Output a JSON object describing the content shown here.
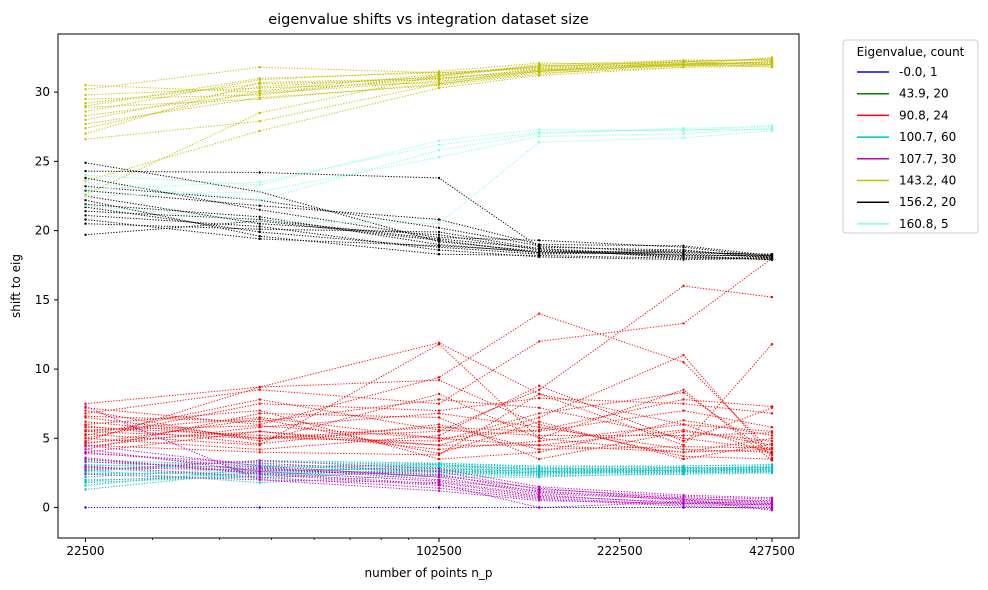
{
  "chart_data": {
    "type": "line",
    "title": "eigenvalue shifts vs integration dataset size",
    "xlabel": "number of points n_p",
    "ylabel": "shift to eig",
    "xscale": "log",
    "xlim": [
      20000,
      480000
    ],
    "ylim": [
      -2.2,
      34.2
    ],
    "x_ticks": [
      22500,
      102500,
      222500,
      427500
    ],
    "y_ticks": [
      0,
      5,
      10,
      15,
      20,
      25,
      30
    ],
    "x": [
      22500,
      47500,
      102500,
      157500,
      292500,
      427500
    ],
    "grid": false,
    "line_style": "dotted with small point markers",
    "legend": {
      "title": "Eigenvalue, count",
      "placement": "outside-right"
    },
    "groups": [
      {
        "label": "-0.0, 1",
        "color": "#0000ff",
        "count": 1,
        "curves": [
          [
            0.0,
            0.0,
            0.0,
            0.0,
            0.0,
            0.0
          ]
        ]
      },
      {
        "label": "43.9, 20",
        "color": "#008000",
        "count": 20,
        "curves": []
      },
      {
        "label": "90.8, 24",
        "color": "#ff0000",
        "count": 24,
        "curves": [
          [
            7.5,
            8.7,
            11.9,
            8.2,
            6.0,
            5.5
          ],
          [
            7.2,
            6.0,
            9.4,
            14.0,
            10.5,
            4.0
          ],
          [
            6.8,
            8.5,
            7.5,
            12.0,
            13.3,
            18.0
          ],
          [
            6.5,
            5.0,
            5.5,
            8.5,
            16.0,
            15.2
          ],
          [
            5.3,
            4.5,
            11.8,
            5.0,
            8.5,
            3.4
          ],
          [
            4.0,
            5.5,
            4.5,
            6.5,
            11.0,
            3.6
          ],
          [
            5.0,
            7.5,
            7.0,
            7.9,
            7.5,
            6.8
          ],
          [
            4.5,
            4.0,
            3.8,
            8.2,
            4.5,
            11.8
          ],
          [
            5.5,
            6.5,
            5.0,
            4.5,
            4.0,
            4.2
          ],
          [
            5.8,
            5.2,
            4.5,
            4.5,
            5.6,
            4.5
          ],
          [
            7.0,
            4.8,
            8.2,
            5.0,
            4.0,
            5.0
          ],
          [
            4.2,
            6.8,
            6.5,
            3.5,
            5.5,
            4.8
          ],
          [
            6.2,
            5.0,
            5.8,
            5.5,
            7.0,
            5.8
          ],
          [
            4.8,
            8.7,
            9.2,
            6.0,
            3.7,
            3.5
          ],
          [
            5.0,
            4.2,
            5.2,
            8.8,
            4.8,
            7.2
          ],
          [
            6.0,
            7.0,
            3.5,
            4.0,
            6.3,
            5.2
          ],
          [
            4.4,
            5.8,
            6.8,
            5.8,
            4.2,
            4.0
          ],
          [
            5.5,
            5.0,
            4.8,
            6.8,
            8.3,
            3.8
          ],
          [
            6.6,
            6.2,
            7.8,
            7.2,
            5.0,
            4.2
          ],
          [
            4.7,
            5.5,
            4.2,
            4.8,
            6.0,
            3.9
          ],
          [
            5.2,
            7.8,
            5.6,
            5.2,
            5.2,
            5.4
          ],
          [
            5.9,
            4.6,
            6.0,
            4.2,
            4.4,
            4.3
          ],
          [
            4.6,
            6.4,
            3.9,
            6.2,
            3.5,
            4.6
          ],
          [
            5.6,
            5.9,
            5.0,
            5.6,
            7.8,
            7.3
          ]
        ]
      },
      {
        "label": "100.7, 60",
        "color": "#00bfbf",
        "count": 60,
        "curves": [
          [
            1.3,
            2.6,
            2.9,
            2.6,
            2.7,
            2.8
          ],
          [
            1.6,
            2.8,
            3.1,
            2.8,
            2.9,
            2.9
          ],
          [
            1.9,
            2.5,
            2.6,
            2.4,
            2.6,
            2.7
          ],
          [
            2.2,
            2.9,
            3.2,
            2.9,
            3.0,
            3.1
          ],
          [
            2.5,
            2.4,
            2.7,
            2.5,
            2.5,
            2.6
          ],
          [
            2.8,
            3.0,
            3.0,
            2.7,
            2.8,
            2.9
          ],
          [
            3.1,
            2.7,
            2.8,
            2.6,
            2.7,
            2.6
          ],
          [
            3.4,
            3.1,
            2.5,
            2.4,
            2.6,
            2.5
          ],
          [
            2.0,
            2.2,
            2.6,
            2.5,
            2.7,
            2.8
          ],
          [
            2.4,
            2.6,
            3.0,
            2.8,
            2.8,
            3.0
          ],
          [
            2.7,
            1.8,
            2.4,
            2.3,
            2.4,
            2.5
          ],
          [
            3.0,
            3.3,
            3.1,
            2.7,
            2.9,
            2.7
          ],
          [
            1.8,
            2.3,
            2.8,
            2.6,
            2.8,
            2.9
          ],
          [
            3.3,
            2.8,
            2.2,
            2.2,
            2.5,
            2.6
          ],
          [
            2.6,
            3.4,
            3.2,
            3.0,
            3.0,
            3.1
          ],
          [
            2.9,
            2.1,
            2.7,
            2.5,
            2.6,
            2.7
          ]
        ]
      },
      {
        "label": "107.7, 30",
        "color": "#bf00bf",
        "count": 30,
        "curves": [
          [
            7.3,
            2.0,
            1.8,
            0.8,
            0.4,
            0.3
          ],
          [
            4.5,
            3.0,
            2.2,
            1.0,
            0.6,
            0.5
          ],
          [
            4.2,
            2.6,
            1.9,
            0.9,
            0.3,
            0.2
          ],
          [
            3.9,
            3.2,
            2.6,
            1.3,
            0.8,
            0.6
          ],
          [
            3.6,
            2.4,
            1.6,
            0.7,
            0.2,
            0.1
          ],
          [
            3.3,
            2.8,
            2.4,
            1.1,
            0.7,
            0.4
          ],
          [
            3.0,
            2.2,
            1.4,
            0.6,
            0.1,
            -0.1
          ],
          [
            2.7,
            3.4,
            2.8,
            1.5,
            0.9,
            0.7
          ],
          [
            2.4,
            2.0,
            1.2,
            0.5,
            0.3,
            0.2
          ],
          [
            4.0,
            2.9,
            2.0,
            1.2,
            0.5,
            0.4
          ],
          [
            3.5,
            2.5,
            1.7,
            0.0,
            0.4,
            0.3
          ],
          [
            2.9,
            2.7,
            2.3,
            1.4,
            0.6,
            -0.2
          ]
        ]
      },
      {
        "label": "143.2, 40",
        "color": "#bfbf00",
        "count": 40,
        "curves": [
          [
            30.5,
            30.0,
            31.0,
            31.5,
            32.0,
            32.2
          ],
          [
            30.2,
            31.8,
            31.4,
            31.8,
            32.2,
            32.4
          ],
          [
            29.8,
            30.3,
            30.7,
            31.6,
            31.9,
            32.0
          ],
          [
            29.5,
            29.8,
            31.2,
            32.0,
            32.3,
            32.3
          ],
          [
            29.2,
            30.6,
            30.9,
            31.7,
            32.1,
            32.1
          ],
          [
            28.9,
            29.5,
            30.6,
            31.4,
            31.8,
            31.9
          ],
          [
            28.6,
            30.9,
            31.5,
            32.1,
            32.0,
            32.5
          ],
          [
            28.3,
            29.9,
            30.8,
            31.5,
            32.2,
            32.0
          ],
          [
            28.0,
            30.4,
            31.1,
            31.9,
            31.9,
            32.2
          ],
          [
            27.7,
            29.6,
            30.5,
            31.3,
            32.1,
            31.8
          ],
          [
            27.4,
            30.1,
            31.3,
            31.8,
            32.3,
            32.3
          ],
          [
            27.0,
            30.7,
            31.0,
            31.6,
            32.0,
            32.1
          ],
          [
            26.6,
            27.9,
            30.6,
            31.5,
            31.9,
            32.0
          ],
          [
            23.6,
            27.2,
            30.3,
            31.2,
            31.8,
            31.9
          ],
          [
            22.6,
            28.5,
            31.2,
            31.9,
            32.2,
            32.4
          ],
          [
            29.0,
            31.0,
            31.4,
            31.7,
            32.0,
            32.2
          ]
        ]
      },
      {
        "label": "156.2, 20",
        "color": "#000000",
        "count": 20,
        "curves": [
          [
            24.9,
            22.8,
            19.2,
            18.5,
            18.2,
            18.2
          ],
          [
            24.3,
            24.2,
            23.8,
            18.8,
            18.6,
            18.0
          ],
          [
            23.8,
            21.5,
            19.5,
            19.3,
            18.8,
            18.1
          ],
          [
            23.2,
            22.2,
            20.2,
            18.9,
            18.4,
            18.3
          ],
          [
            22.9,
            21.8,
            20.8,
            19.0,
            18.9,
            18.2
          ],
          [
            22.5,
            20.5,
            19.7,
            18.6,
            18.1,
            17.9
          ],
          [
            22.2,
            19.6,
            18.3,
            18.2,
            18.0,
            18.0
          ],
          [
            21.9,
            21.0,
            19.0,
            18.4,
            18.3,
            18.1
          ],
          [
            21.7,
            19.9,
            18.8,
            18.3,
            18.5,
            18.2
          ],
          [
            21.4,
            20.8,
            19.4,
            18.7,
            18.2,
            17.9
          ],
          [
            21.1,
            20.3,
            18.6,
            18.1,
            17.9,
            18.0
          ],
          [
            20.8,
            19.4,
            18.9,
            18.5,
            18.4,
            18.3
          ],
          [
            20.5,
            20.1,
            19.9,
            18.7,
            18.0,
            18.1
          ],
          [
            19.7,
            20.7,
            19.3,
            18.4,
            18.6,
            18.0
          ]
        ]
      },
      {
        "label": "160.8, 5",
        "color": "#7fffd4",
        "count": 5,
        "curves": [
          [
            24.0,
            23.3,
            26.5,
            27.3,
            27.2,
            27.6
          ],
          [
            23.5,
            22.2,
            25.8,
            27.0,
            27.4,
            27.5
          ],
          [
            22.5,
            22.8,
            25.3,
            26.8,
            27.0,
            27.4
          ],
          [
            21.8,
            20.7,
            20.5,
            26.4,
            26.7,
            27.2
          ],
          [
            23.0,
            23.5,
            26.2,
            27.1,
            27.3,
            27.3
          ]
        ]
      }
    ]
  }
}
